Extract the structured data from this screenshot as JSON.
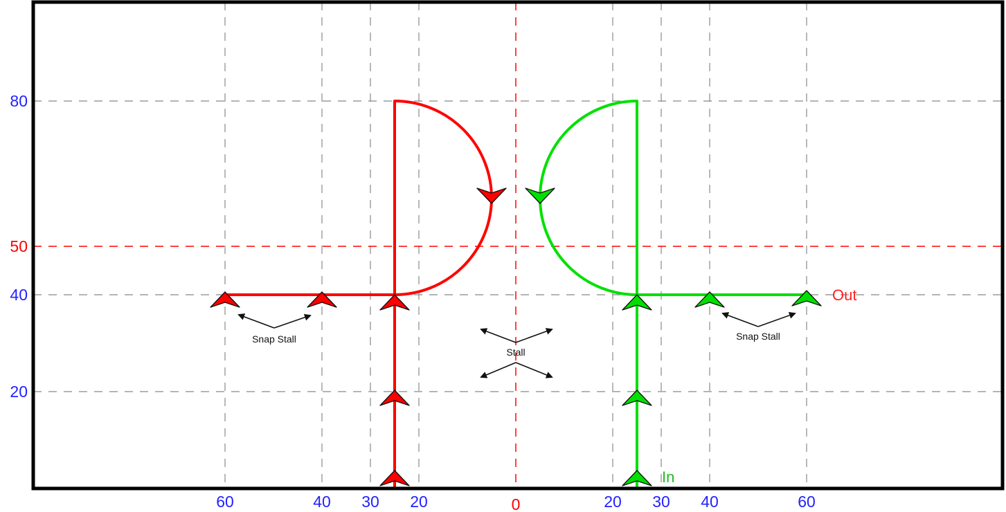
{
  "colors": {
    "left_path": "#ff0000",
    "right_path": "#00e000",
    "axis_tick": "#2222ff",
    "center_line": "#ff0000",
    "grid": "#888888",
    "frame": "#000000",
    "annotation": "#111111"
  },
  "x_ticks": [
    {
      "value": -60,
      "label": "60",
      "color": "blue"
    },
    {
      "value": -40,
      "label": "40",
      "color": "blue"
    },
    {
      "value": -30,
      "label": "30",
      "color": "blue"
    },
    {
      "value": -20,
      "label": "20",
      "color": "blue"
    },
    {
      "value": 0,
      "label": "0",
      "color": "red"
    },
    {
      "value": 20,
      "label": "20",
      "color": "blue"
    },
    {
      "value": 30,
      "label": "30",
      "color": "blue"
    },
    {
      "value": 40,
      "label": "40",
      "color": "blue"
    },
    {
      "value": 60,
      "label": "60",
      "color": "blue"
    }
  ],
  "y_ticks": [
    {
      "value": 20,
      "label": "20",
      "color": "blue"
    },
    {
      "value": 40,
      "label": "40",
      "color": "blue"
    },
    {
      "value": 50,
      "label": "50",
      "color": "red"
    },
    {
      "value": 80,
      "label": "80",
      "color": "blue"
    }
  ],
  "paths": {
    "left": {
      "x": -25,
      "horizontal_from": -60,
      "top": 80,
      "arc_center_y": 60,
      "arc_radius": 20
    },
    "right": {
      "x": 25,
      "horizontal_to": 60,
      "top": 80,
      "arc_center_y": 60,
      "arc_radius": 20
    }
  },
  "labels": {
    "in": "In",
    "out": "Out",
    "snap_stall_left": "Snap Stall",
    "snap_stall_right": "Snap Stall",
    "stall": "Stall"
  }
}
